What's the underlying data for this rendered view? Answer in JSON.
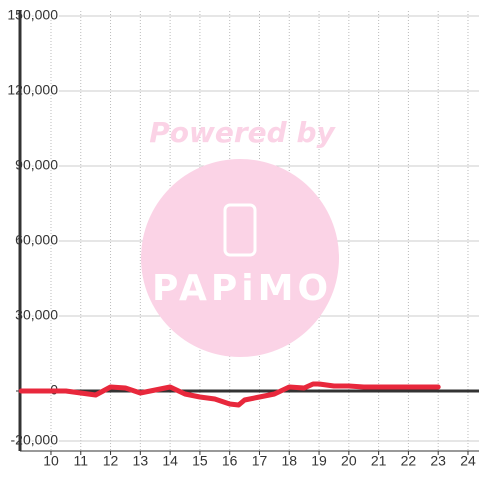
{
  "chart_data": {
    "type": "line",
    "x": [
      9,
      10,
      10.5,
      11,
      11.5,
      12,
      12.5,
      13,
      13.5,
      14,
      14.5,
      15,
      15.5,
      16,
      16.3,
      16.5,
      17,
      17.5,
      18,
      18.5,
      18.8,
      19,
      19.5,
      20,
      20.5,
      21,
      22,
      23
    ],
    "series": [
      {
        "color": "#e8283c",
        "values": [
          0,
          0,
          0,
          -800,
          -1600,
          1600,
          1200,
          -800,
          400,
          1600,
          -1200,
          -2400,
          -3200,
          -5200,
          -5600,
          -3600,
          -2400,
          -1200,
          1600,
          1200,
          2800,
          2800,
          2000,
          2000,
          1600,
          1600,
          1600,
          1600
        ]
      }
    ],
    "xlim": [
      8.96,
      24.37
    ],
    "xticks": [
      10,
      11,
      12,
      13,
      14,
      15,
      16,
      17,
      18,
      19,
      20,
      21,
      22,
      23,
      24
    ],
    "ylim": [
      -24000,
      152000
    ],
    "yticks": [
      {
        "value": -20000,
        "label": "-20,000"
      },
      0,
      {
        "value": 30000,
        "label": "30,000"
      },
      {
        "value": 60000,
        "label": "60,000"
      },
      {
        "value": 90000,
        "label": "90,000"
      },
      {
        "value": 120000,
        "label": "120,000"
      },
      {
        "value": 150000,
        "label": "150,000"
      }
    ],
    "grid": true,
    "annotations": [
      "Powered by",
      "PAPiMO"
    ]
  }
}
